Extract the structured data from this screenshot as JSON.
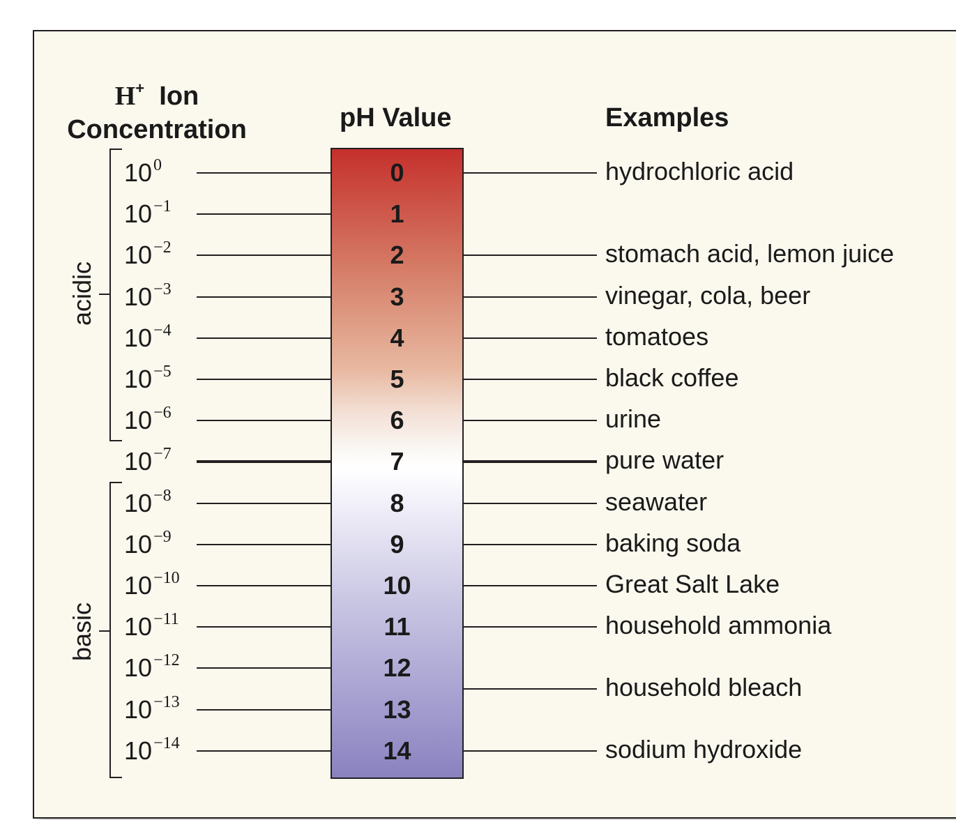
{
  "headers": {
    "concentration": {
      "h": "H",
      "sup": "+",
      "ion": "Ion",
      "line2": "Concentration"
    },
    "ph": "pH Value",
    "examples": "Examples"
  },
  "labels": {
    "acidic": "acidic",
    "basic": "basic"
  },
  "rows": [
    {
      "ph": "0",
      "base": "10",
      "exp": "0"
    },
    {
      "ph": "1",
      "base": "10",
      "exp": "−1"
    },
    {
      "ph": "2",
      "base": "10",
      "exp": "−2"
    },
    {
      "ph": "3",
      "base": "10",
      "exp": "−3"
    },
    {
      "ph": "4",
      "base": "10",
      "exp": "−4"
    },
    {
      "ph": "5",
      "base": "10",
      "exp": "−5"
    },
    {
      "ph": "6",
      "base": "10",
      "exp": "−6"
    },
    {
      "ph": "7",
      "base": "10",
      "exp": "−7"
    },
    {
      "ph": "8",
      "base": "10",
      "exp": "−8"
    },
    {
      "ph": "9",
      "base": "10",
      "exp": "−9"
    },
    {
      "ph": "10",
      "base": "10",
      "exp": "−10"
    },
    {
      "ph": "11",
      "base": "10",
      "exp": "−11"
    },
    {
      "ph": "12",
      "base": "10",
      "exp": "−12"
    },
    {
      "ph": "13",
      "base": "10",
      "exp": "−13"
    },
    {
      "ph": "14",
      "base": "10",
      "exp": "−14"
    }
  ],
  "examples": [
    {
      "ph": 0,
      "text": "hydrochloric acid"
    },
    {
      "ph": 2,
      "text": "stomach acid, lemon juice"
    },
    {
      "ph": 3,
      "text": "vinegar, cola, beer"
    },
    {
      "ph": 4,
      "text": "tomatoes"
    },
    {
      "ph": 5,
      "text": "black coffee"
    },
    {
      "ph": 6,
      "text": "urine"
    },
    {
      "ph": 7,
      "text": "pure water"
    },
    {
      "ph": 8,
      "text": "seawater"
    },
    {
      "ph": 9,
      "text": "baking soda"
    },
    {
      "ph": 10,
      "text": "Great Salt Lake"
    },
    {
      "ph": 11,
      "text": "household ammonia"
    },
    {
      "ph": 12.5,
      "text": "household bleach"
    },
    {
      "ph": 14,
      "text": "sodium hydroxide"
    }
  ]
}
